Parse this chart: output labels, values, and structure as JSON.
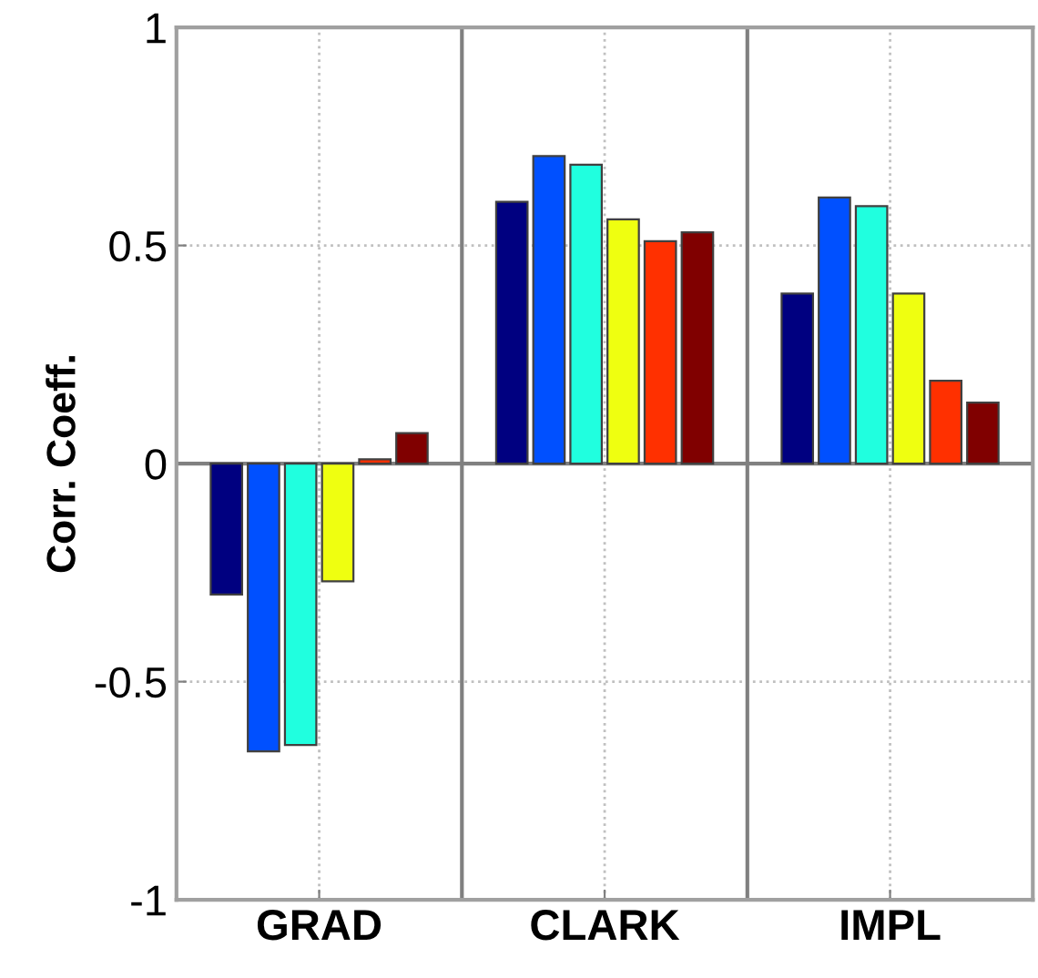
{
  "chart_data": {
    "type": "bar",
    "ylabel": "Corr. Coeff.",
    "categories": [
      "GRAD",
      "CLARK",
      "IMPL"
    ],
    "series": [
      {
        "color": "#000080",
        "values": [
          -0.3,
          0.6,
          0.39
        ]
      },
      {
        "color": "#0050ff",
        "values": [
          -0.66,
          0.705,
          0.61
        ]
      },
      {
        "color": "#20ffdf",
        "values": [
          -0.645,
          0.685,
          0.59
        ]
      },
      {
        "color": "#efff10",
        "values": [
          -0.27,
          0.56,
          0.39
        ]
      },
      {
        "color": "#ff3000",
        "values": [
          0.01,
          0.51,
          0.19
        ]
      },
      {
        "color": "#800000",
        "values": [
          0.07,
          0.53,
          0.14
        ]
      }
    ],
    "ylim": [
      -1,
      1
    ],
    "yticks": [
      -1,
      -0.5,
      0,
      0.5,
      1
    ],
    "grid": true,
    "legend": false
  }
}
